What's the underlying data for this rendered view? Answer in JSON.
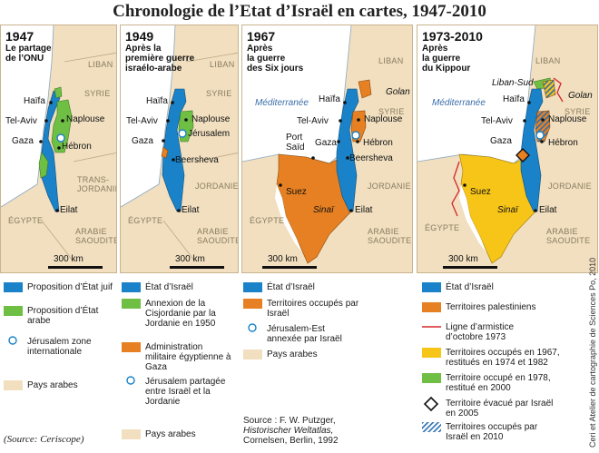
{
  "title": "Chronologie de l’Etat d’Israël en cartes, 1947-2010",
  "colors": {
    "israel": "#1a82c8",
    "arab_state_proposal": "#6fbf45",
    "jordan_annex": "#6fbf45",
    "egypt_admin": "#e68022",
    "occupied": "#e68022",
    "palestinian": "#e68022",
    "returned": "#f7c418",
    "returned_2000": "#6fbf45",
    "arab_countries": "#f1dfbf",
    "sea": "#ffffff",
    "armistice_line": "#d7262b",
    "hatch": "#2c6fb0"
  },
  "panels": [
    {
      "year": "1947",
      "subtitle": [
        "Le partage",
        "de l’ONU"
      ],
      "labels": {
        "haifa": "Haïfa",
        "telaviv": "Tel-Aviv",
        "naplouse": "Naplouse",
        "gaza": "Gaza",
        "hebron": "Hébron",
        "eilat": "Eilat"
      },
      "regions": {
        "liban": "LIBAN",
        "syrie": "SYRIE",
        "transjordanie": [
          "TRANS-",
          "JORDANIE"
        ],
        "egypte": "ÉGYPTE",
        "arabie": [
          "ARABIE",
          "SAOUDITE"
        ]
      },
      "scale": "300 km"
    },
    {
      "year": "1949",
      "subtitle": [
        "Après la",
        "première guerre",
        "israélo-arabe"
      ],
      "labels": {
        "haifa": "Haïfa",
        "telaviv": "Tel-Aviv",
        "naplouse": "Naplouse",
        "gaza": "Gaza",
        "jerusalem": "Jérusalem",
        "beersheva": "Beersheva",
        "eilat": "Eilat"
      },
      "regions": {
        "liban": "LIBAN",
        "syrie": "SYRIE",
        "jordanie": "JORDANIE",
        "egypte": "ÉGYPTE",
        "arabie": [
          "ARABIE",
          "SAOUDITE"
        ]
      },
      "scale": "300 km"
    },
    {
      "year": "1967",
      "subtitle": [
        "Après",
        "la guerre",
        "des Six jours"
      ],
      "labels": {
        "golan": "Golan",
        "haifa": "Haïfa",
        "telaviv": "Tel-Aviv",
        "naplouse": "Naplouse",
        "portsaid": [
          "Port",
          "Saïd"
        ],
        "gaza": "Gaza",
        "hebron": "Hébron",
        "beersheva": "Beersheva",
        "suez": "Suez",
        "sinai": "Sinaï",
        "eilat": "Eilat",
        "mediterranee": "Méditerranée"
      },
      "regions": {
        "liban": "LIBAN",
        "syrie": "SYRIE",
        "jordanie": "JORDANIE",
        "egypte": "ÉGYPTE",
        "arabie": [
          "ARABIE",
          "SAOUDITE"
        ]
      },
      "scale": "300 km"
    },
    {
      "year": "1973-2010",
      "subtitle": [
        "Après",
        "la guerre",
        "du Kippour"
      ],
      "labels": {
        "libansud": "Liban-Sud",
        "golan": "Golan",
        "haifa": "Haïfa",
        "telaviv": "Tel-Aviv",
        "naplouse": "Naplouse",
        "gaza": "Gaza",
        "hebron": "Hébron",
        "suez": "Suez",
        "sinai": "Sinaï",
        "eilat": "Eilat",
        "mediterranee": "Méditerranée"
      },
      "regions": {
        "liban": "LIBAN",
        "syrie": "SYRIE",
        "jordanie": "JORDANIE",
        "egypte": "ÉGYPTE",
        "arabie": [
          "ARABIE",
          "SAOUDITE"
        ]
      },
      "scale": "300 km"
    }
  ],
  "legends": [
    [
      {
        "swatch": "israel",
        "text": "Proposition d’État juif"
      },
      {
        "swatch": "arab_state_proposal",
        "text": "Proposition d’État arabe"
      },
      {
        "swatch": "circle",
        "text": "Jérusalem zone internationale"
      },
      {
        "swatch": "arab_countries",
        "text": "Pays arabes"
      }
    ],
    [
      {
        "swatch": "israel",
        "text": "État d’Israël"
      },
      {
        "swatch": "jordan_annex",
        "text": "Annexion de la Cisjordanie par la Jordanie en 1950"
      },
      {
        "swatch": "egypt_admin",
        "text": "Administration militaire égyptienne à Gaza"
      },
      {
        "swatch": "circle",
        "text": "Jérusalem partagée entre Israël et la Jordanie"
      },
      {
        "swatch": "arab_countries",
        "text": "Pays arabes"
      }
    ],
    [
      {
        "swatch": "israel",
        "text": "État d’Israël"
      },
      {
        "swatch": "occupied",
        "text": "Territoires occupés par Israël"
      },
      {
        "swatch": "circle",
        "text": "Jérusalem-Est annexée par Israël"
      },
      {
        "swatch": "arab_countries",
        "text": "Pays arabes"
      }
    ],
    [
      {
        "swatch": "israel",
        "text": "État d’Israël"
      },
      {
        "swatch": "palestinian",
        "text": "Territoires palestiniens"
      },
      {
        "swatch": "armistice",
        "text": "Ligne d’armistice d’octobre 1973"
      },
      {
        "swatch": "returned",
        "text": "Territoires occupés en 1967, restitués en 1974 et 1982"
      },
      {
        "swatch": "returned_2000",
        "text": "Territoire occupé en 1978, restitué en 2000"
      },
      {
        "swatch": "diamond",
        "text": "Territoire évacué par Israël en 2005"
      },
      {
        "swatch": "hatch",
        "text": "Territoires occupés par Israël en 2010"
      }
    ]
  ],
  "source_book": [
    "Source : F. W. Putzger,",
    "Historischer Weltatlas,",
    "Cornelsen, Berlin, 1992"
  ],
  "source_credit": "(Source: Ceriscope)",
  "side_credit": "Ceri et Atelier de cartographie de Sciences Po, 2010"
}
